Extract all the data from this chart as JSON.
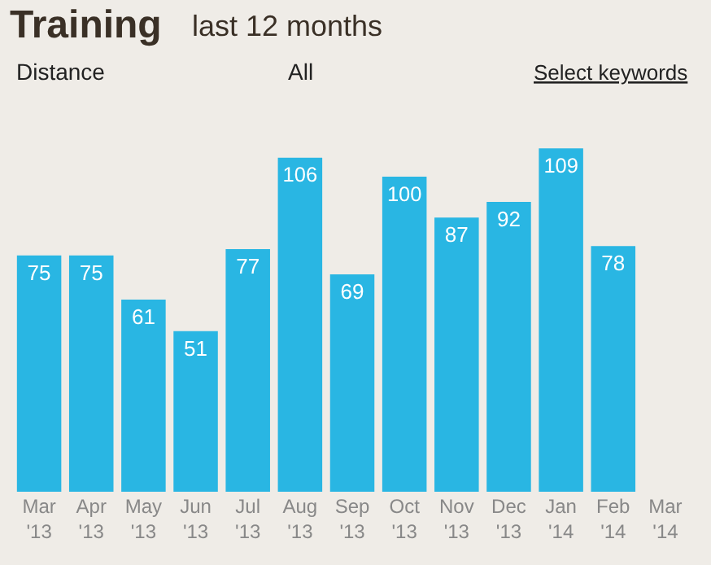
{
  "chart_data": {
    "type": "bar",
    "title": "Training",
    "subtitle": "last 12 months",
    "annotations": [
      "Distance",
      "All",
      "Select keywords"
    ],
    "categories": [
      "Mar '13",
      "Apr '13",
      "May '13",
      "Jun '13",
      "Jul '13",
      "Aug '13",
      "Sep '13",
      "Oct '13",
      "Nov '13",
      "Dec '13",
      "Jan '14",
      "Feb '14",
      "Mar '14"
    ],
    "values": [
      75,
      75,
      61,
      51,
      77,
      106,
      69,
      100,
      87,
      92,
      109,
      78,
      null
    ],
    "color": "#29b6e3",
    "data_labels": true
  }
}
